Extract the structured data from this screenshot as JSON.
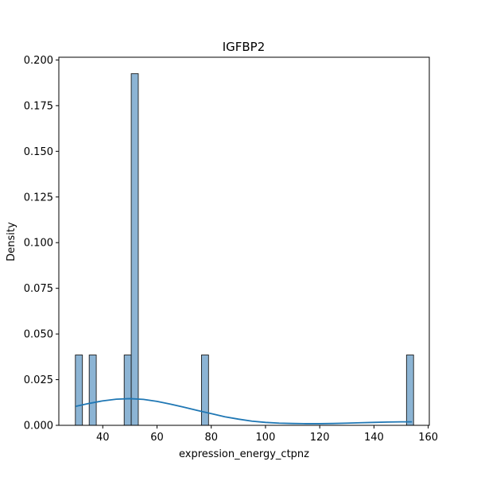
{
  "chart_data": {
    "type": "bar",
    "subtype": "histogram-with-kde",
    "title": "IGFBP2",
    "xlabel": "expression_energy_ctpnz",
    "ylabel": "Density",
    "xlim": [
      23.8,
      160.4
    ],
    "ylim": [
      0,
      0.2015
    ],
    "x_ticks": [
      40,
      60,
      80,
      100,
      120,
      140,
      160
    ],
    "y_ticks": [
      0.0,
      0.025,
      0.05,
      0.075,
      0.1,
      0.125,
      0.15,
      0.175,
      0.2
    ],
    "y_tick_labels": [
      "0.000",
      "0.025",
      "0.050",
      "0.075",
      "0.100",
      "0.125",
      "0.150",
      "0.175",
      "0.200"
    ],
    "bins": [
      {
        "x0": 29.9,
        "x1": 32.5,
        "density": 0.0385
      },
      {
        "x0": 35.0,
        "x1": 37.6,
        "density": 0.0385
      },
      {
        "x0": 47.9,
        "x1": 50.5,
        "density": 0.0385
      },
      {
        "x0": 50.5,
        "x1": 53.1,
        "density": 0.1925
      },
      {
        "x0": 76.4,
        "x1": 79.0,
        "density": 0.0385
      },
      {
        "x0": 152.0,
        "x1": 154.6,
        "density": 0.0385
      }
    ],
    "kde": {
      "x": [
        30,
        35,
        40,
        45,
        50,
        55,
        60,
        65,
        70,
        75,
        80,
        85,
        90,
        95,
        100,
        105,
        110,
        115,
        120,
        125,
        130,
        135,
        140,
        145,
        150,
        154
      ],
      "y": [
        0.0104,
        0.012,
        0.0134,
        0.0143,
        0.0146,
        0.0142,
        0.0131,
        0.0116,
        0.0099,
        0.0081,
        0.0064,
        0.0047,
        0.0034,
        0.0023,
        0.0016,
        0.0012,
        0.001,
        0.0009,
        0.0009,
        0.001,
        0.0012,
        0.0014,
        0.0016,
        0.0018,
        0.0019,
        0.0019
      ]
    },
    "grid": false,
    "legend": "none",
    "bar_fill": "#8cb4d4",
    "bar_edge": "#1a1a1a",
    "line_color": "#1f77b4"
  }
}
